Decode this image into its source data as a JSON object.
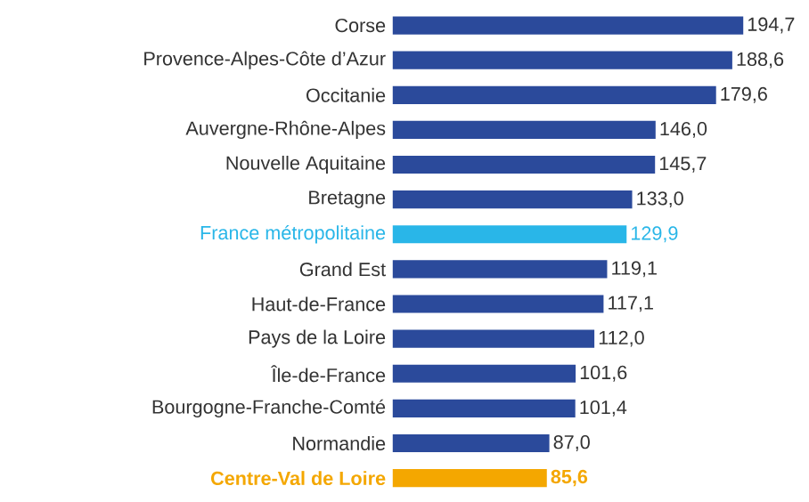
{
  "chart_data": {
    "type": "bar",
    "orientation": "horizontal",
    "categories": [
      "Corse",
      "Provence-Alpes-Côte d’Azur",
      "Occitanie",
      "Auvergne-Rhône-Alpes",
      "Nouvelle Aquitaine",
      "Bretagne",
      "France métropolitaine",
      "Grand Est",
      "Haut-de-France",
      "Pays de la Loire",
      "Île-de-France",
      "Bourgogne-Franche-Comté",
      "Normandie",
      "**Centre-Val de Loire**"
    ],
    "values": [
      194.7,
      188.6,
      179.6,
      146.0,
      145.7,
      133.0,
      129.9,
      119.1,
      117.1,
      112.0,
      101.6,
      101.4,
      87.0,
      85.6
    ],
    "value_labels": [
      "194,7",
      "188,6",
      "179,6",
      "146,0",
      "145,7",
      "133,0",
      "129,9",
      "119,1",
      "117,1",
      "112,0",
      "101,6",
      "101,4",
      "87,0",
      "**85,6**"
    ],
    "colors": [
      "#2b4a9b",
      "#2b4a9b",
      "#2b4a9b",
      "#2b4a9b",
      "#2b4a9b",
      "#2b4a9b",
      "#29b6e8",
      "#2b4a9b",
      "#2b4a9b",
      "#2b4a9b",
      "#2b4a9b",
      "#2b4a9b",
      "#2b4a9b",
      "#f4a700"
    ]
  }
}
